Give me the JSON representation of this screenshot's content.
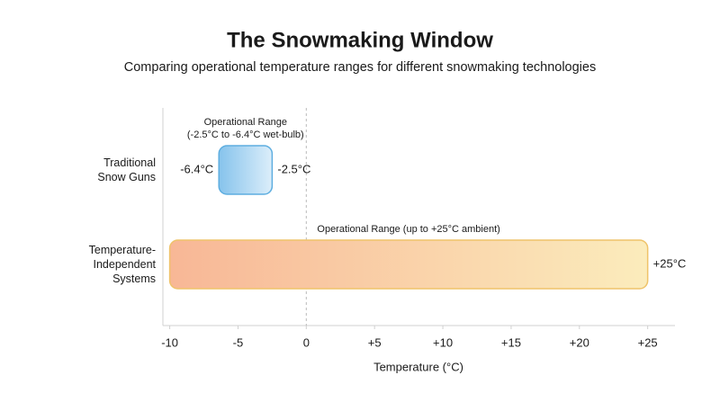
{
  "chart_data": {
    "type": "range_bar",
    "title": "The Snowmaking Window",
    "subtitle": "Comparing operational temperature ranges for different snowmaking technologies",
    "x_label": "Temperature (°C)",
    "categories": [
      "Traditional Snow Guns",
      "Temperature-Independent Systems"
    ],
    "starts": [
      -6.4,
      -10
    ],
    "ends": [
      -2.5,
      25
    ],
    "start_labels": [
      "-6.4°C",
      null
    ],
    "end_labels": [
      "-2.5°C",
      "+25°C"
    ],
    "annotations": [
      [
        "Operational Range",
        "(-2.5°C to -6.4°C wet-bulb)"
      ],
      [
        "Operational Range (up to +25°C ambient)"
      ]
    ],
    "colors": [
      {
        "from": "#86c3ec",
        "to": "#dcEEfA",
        "stroke": "#5eaee0"
      },
      {
        "from": "#f8b796",
        "to": "#fbecbc",
        "stroke": "#efc36a"
      }
    ],
    "xlim": [
      -10.5,
      27
    ],
    "xticks": [
      -10,
      -5,
      0,
      {
        "value": 5,
        "label": "+5"
      },
      {
        "value": 10,
        "label": "+10"
      },
      {
        "value": 15,
        "label": "+15"
      },
      {
        "value": 20,
        "label": "+20"
      },
      {
        "value": 25,
        "label": "+25"
      }
    ],
    "reference_line": 0,
    "grid": false
  }
}
